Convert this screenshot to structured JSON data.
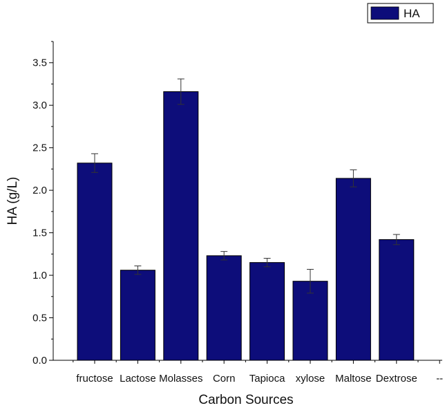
{
  "chart_data": {
    "type": "bar",
    "categories": [
      "fructose",
      "Lactose",
      "Molasses",
      "Corn",
      "Tapioca",
      "xylose",
      "Maltose",
      "Dextrose",
      "--"
    ],
    "series": [
      {
        "name": "HA",
        "values": [
          2.32,
          1.06,
          3.16,
          1.23,
          1.15,
          0.93,
          2.14,
          1.42,
          null
        ],
        "errors": [
          0.11,
          0.05,
          0.15,
          0.05,
          0.05,
          0.14,
          0.1,
          0.06,
          null
        ],
        "color": "#0d0d7a"
      }
    ],
    "xlabel": "Carbon Sources",
    "ylabel": "HA (g/L)",
    "ylim": [
      0,
      3.75
    ],
    "yticks": [
      "0.0",
      "0.5",
      "1.0",
      "1.5",
      "2.0",
      "2.5",
      "3.0",
      "3.5"
    ],
    "grid": false,
    "legend": {
      "position": "top-right",
      "entries": [
        "HA"
      ]
    }
  }
}
